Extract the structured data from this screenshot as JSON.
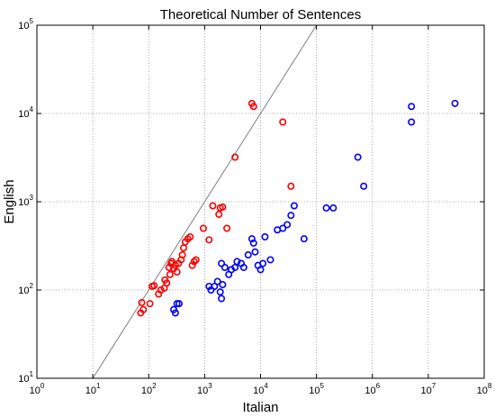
{
  "chart_data": {
    "type": "scatter",
    "title": "Theoretical Number of Sentences",
    "xlabel": "Italian",
    "ylabel": "English",
    "xscale": "log",
    "yscale": "log",
    "xlim": [
      1,
      100000000
    ],
    "ylim": [
      10,
      100000
    ],
    "x_ticks": [
      {
        "base": "10",
        "exp": "0",
        "value": 1
      },
      {
        "base": "10",
        "exp": "1",
        "value": 10
      },
      {
        "base": "10",
        "exp": "2",
        "value": 100
      },
      {
        "base": "10",
        "exp": "3",
        "value": 1000
      },
      {
        "base": "10",
        "exp": "4",
        "value": 10000
      },
      {
        "base": "10",
        "exp": "5",
        "value": 100000
      },
      {
        "base": "10",
        "exp": "6",
        "value": 1000000
      },
      {
        "base": "10",
        "exp": "7",
        "value": 10000000
      },
      {
        "base": "10",
        "exp": "8",
        "value": 100000000
      }
    ],
    "y_ticks": [
      {
        "base": "10",
        "exp": "1",
        "value": 10
      },
      {
        "base": "10",
        "exp": "2",
        "value": 100
      },
      {
        "base": "10",
        "exp": "3",
        "value": 1000
      },
      {
        "base": "10",
        "exp": "4",
        "value": 10000
      },
      {
        "base": "10",
        "exp": "5",
        "value": 100000
      }
    ],
    "grid": true,
    "reference_line": {
      "type": "y=x",
      "color": "#7f7f7f"
    },
    "series": [
      {
        "color": "#ff0000",
        "marker": "circle-open",
        "points": [
          [
            72,
            55
          ],
          [
            75,
            72
          ],
          [
            80,
            60
          ],
          [
            105,
            70
          ],
          [
            115,
            110
          ],
          [
            125,
            112
          ],
          [
            150,
            90
          ],
          [
            165,
            100
          ],
          [
            190,
            105
          ],
          [
            195,
            130
          ],
          [
            210,
            120
          ],
          [
            230,
            180
          ],
          [
            240,
            150
          ],
          [
            250,
            200
          ],
          [
            260,
            210
          ],
          [
            280,
            175
          ],
          [
            300,
            190
          ],
          [
            320,
            160
          ],
          [
            340,
            200
          ],
          [
            380,
            220
          ],
          [
            400,
            250
          ],
          [
            420,
            300
          ],
          [
            450,
            350
          ],
          [
            500,
            380
          ],
          [
            550,
            400
          ],
          [
            600,
            190
          ],
          [
            650,
            210
          ],
          [
            700,
            220
          ],
          [
            950,
            500
          ],
          [
            1200,
            370
          ],
          [
            1400,
            900
          ],
          [
            1800,
            720
          ],
          [
            1900,
            850
          ],
          [
            2100,
            870
          ],
          [
            2500,
            500
          ],
          [
            3500,
            3200
          ],
          [
            7000,
            13000
          ],
          [
            7500,
            12000
          ],
          [
            25000,
            8000
          ],
          [
            35000,
            1500
          ]
        ]
      },
      {
        "color": "#0000ff",
        "marker": "circle-open",
        "points": [
          [
            280,
            60
          ],
          [
            300,
            55
          ],
          [
            320,
            70
          ],
          [
            350,
            70
          ],
          [
            1200,
            110
          ],
          [
            1300,
            100
          ],
          [
            1500,
            110
          ],
          [
            1700,
            125
          ],
          [
            1900,
            95
          ],
          [
            2000,
            80
          ],
          [
            2100,
            115
          ],
          [
            2000,
            200
          ],
          [
            2300,
            180
          ],
          [
            2700,
            150
          ],
          [
            3000,
            170
          ],
          [
            3500,
            180
          ],
          [
            3800,
            210
          ],
          [
            4500,
            200
          ],
          [
            5000,
            180
          ],
          [
            6000,
            250
          ],
          [
            7000,
            380
          ],
          [
            7500,
            340
          ],
          [
            8000,
            270
          ],
          [
            9000,
            190
          ],
          [
            10000,
            170
          ],
          [
            11000,
            200
          ],
          [
            12000,
            400
          ],
          [
            15000,
            220
          ],
          [
            20000,
            480
          ],
          [
            25000,
            500
          ],
          [
            30000,
            550
          ],
          [
            35000,
            700
          ],
          [
            40000,
            900
          ],
          [
            60000,
            380
          ],
          [
            150000,
            850
          ],
          [
            200000,
            850
          ],
          [
            550000,
            3200
          ],
          [
            700000,
            1500
          ],
          [
            5000000,
            8000
          ],
          [
            5000000,
            12000
          ],
          [
            30000000,
            13000
          ]
        ]
      }
    ]
  }
}
